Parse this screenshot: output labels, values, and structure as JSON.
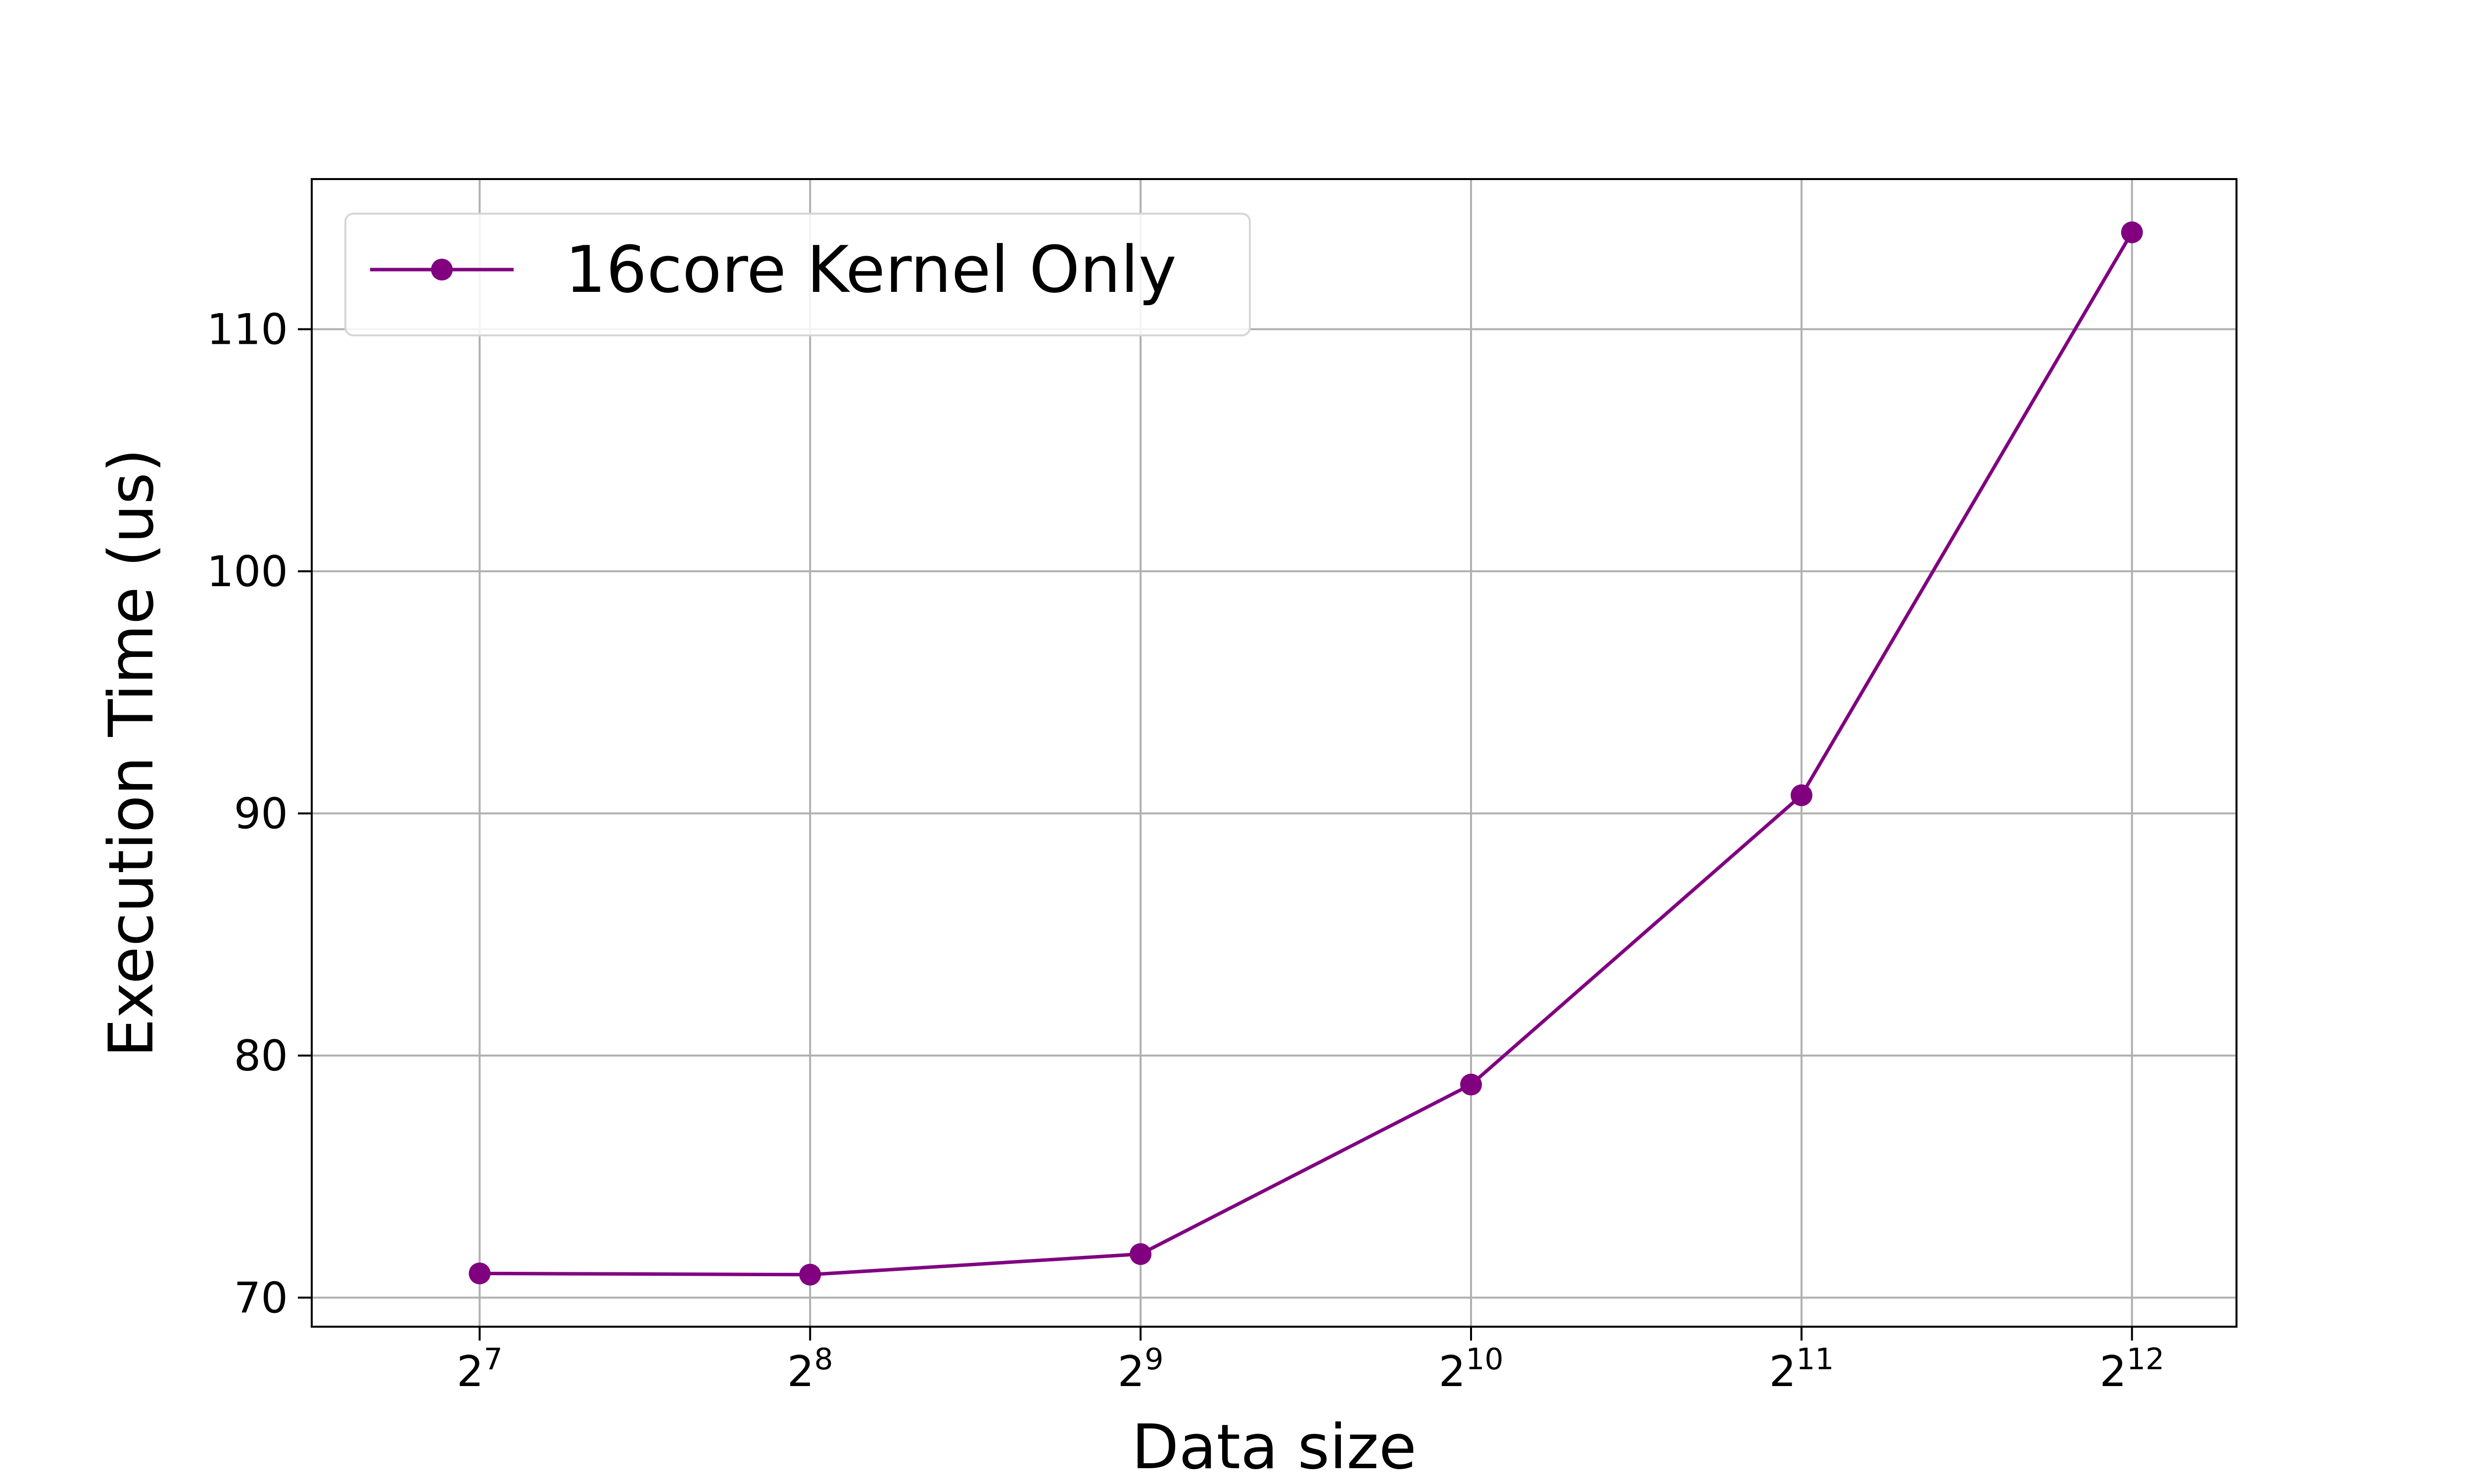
{
  "chart_data": {
    "type": "line",
    "xlabel": "Data size",
    "ylabel": "Execution Time (us)",
    "x_scale": "log2",
    "x": [
      128,
      256,
      512,
      1024,
      2048,
      4096
    ],
    "x_tick_labels": [
      {
        "base": "2",
        "exp": "7"
      },
      {
        "base": "2",
        "exp": "8"
      },
      {
        "base": "2",
        "exp": "9"
      },
      {
        "base": "2",
        "exp": "10"
      },
      {
        "base": "2",
        "exp": "11"
      },
      {
        "base": "2",
        "exp": "12"
      }
    ],
    "y_ticks": [
      70,
      80,
      90,
      100,
      110
    ],
    "ylim": [
      68.8,
      116.2
    ],
    "xlim": [
      90,
      5100
    ],
    "grid": true,
    "legend_position": "top-left",
    "series": [
      {
        "name": "16core Kernel Only",
        "color": "#800080",
        "marker": "circle",
        "values": [
          71.0,
          70.95,
          71.8,
          78.8,
          90.75,
          114.0
        ]
      }
    ]
  }
}
